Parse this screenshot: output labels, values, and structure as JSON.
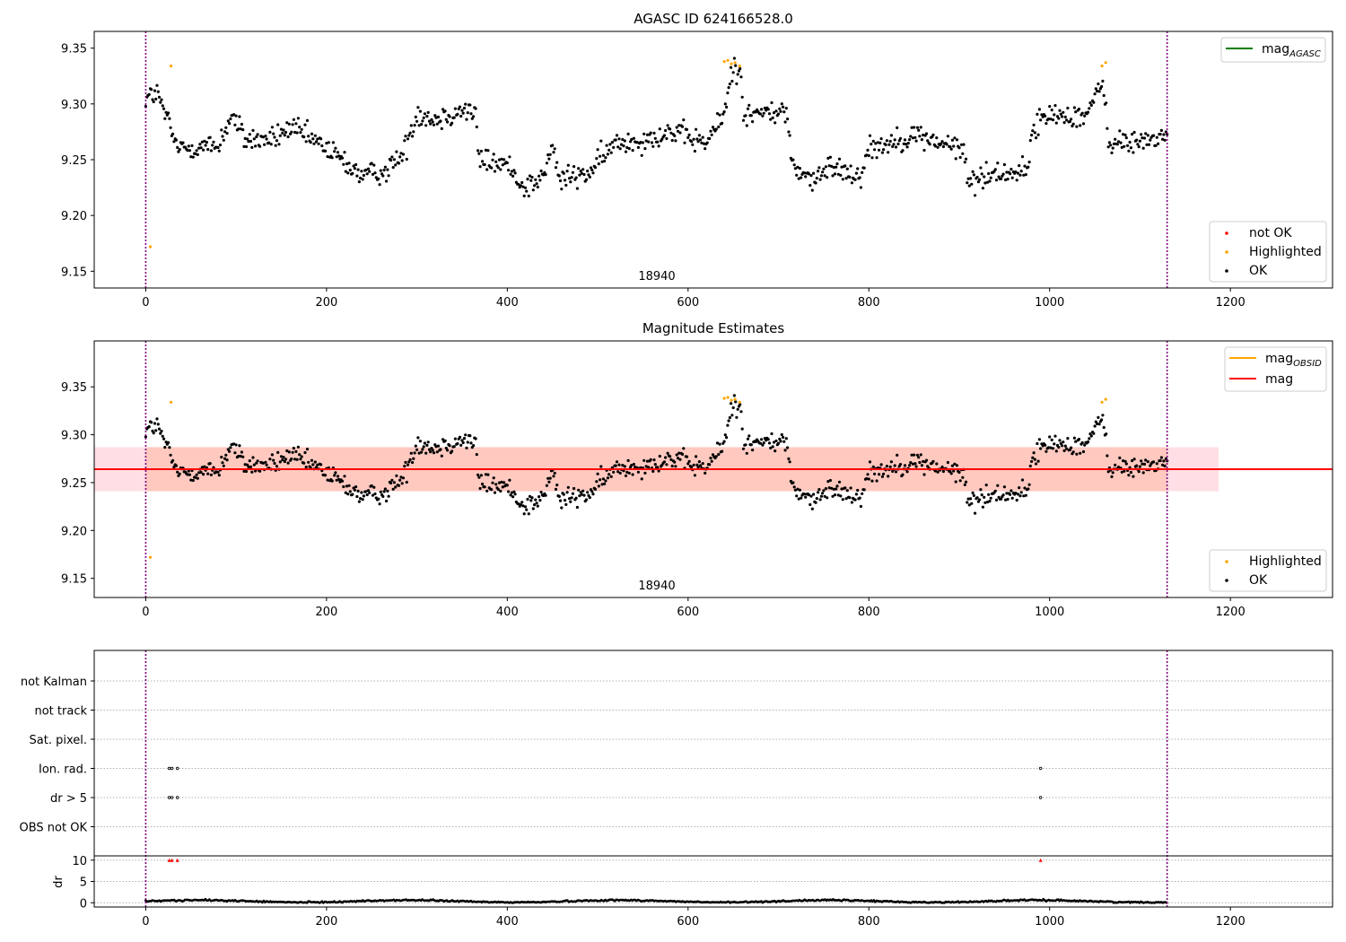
{
  "figure": {
    "title_top": "AGASC ID 624166528.0",
    "title_mid": "Magnitude Estimates"
  },
  "colors": {
    "ok": "#000000",
    "highlighted": "#ffa500",
    "not_ok": "#ff0000",
    "mag_agasc": "#008000",
    "mag_obsid": "#ffa500",
    "mag": "#ff0000",
    "band_fill": "#ffc0cb",
    "band_overlap": "#ffa07a",
    "obs_boundary": "#800080"
  },
  "chart_data": [
    {
      "type": "scatter",
      "title": "AGASC ID 624166528.0",
      "obsid_label": "18940",
      "xlim": [
        -57,
        1313
      ],
      "ylim": [
        9.135,
        9.365
      ],
      "xticks": [
        0,
        200,
        400,
        600,
        800,
        1000,
        1200
      ],
      "yticks": [
        9.15,
        9.2,
        9.25,
        9.3,
        9.35
      ],
      "obs_boundaries": [
        0,
        1130
      ],
      "legend_lines": [
        {
          "name": "mag",
          "sub": "AGASC",
          "color": "#008000"
        }
      ],
      "legend_points": [
        {
          "name": "not OK",
          "color": "#ff0000"
        },
        {
          "name": "Highlighted",
          "color": "#ffa500"
        },
        {
          "name": "OK",
          "color": "#000000"
        }
      ],
      "trend_knots": [
        [
          0,
          9.305
        ],
        [
          12,
          9.31
        ],
        [
          22,
          9.29
        ],
        [
          35,
          9.26
        ],
        [
          60,
          9.262
        ],
        [
          80,
          9.262
        ],
        [
          95,
          9.29
        ],
        [
          110,
          9.268
        ],
        [
          140,
          9.268
        ],
        [
          160,
          9.278
        ],
        [
          180,
          9.27
        ],
        [
          200,
          9.26
        ],
        [
          220,
          9.248
        ],
        [
          240,
          9.235
        ],
        [
          265,
          9.24
        ],
        [
          285,
          9.255
        ],
        [
          300,
          9.292
        ],
        [
          320,
          9.286
        ],
        [
          350,
          9.295
        ],
        [
          365,
          9.292
        ],
        [
          368,
          9.25
        ],
        [
          400,
          9.245
        ],
        [
          420,
          9.225
        ],
        [
          440,
          9.235
        ],
        [
          450,
          9.262
        ],
        [
          458,
          9.232
        ],
        [
          490,
          9.238
        ],
        [
          520,
          9.265
        ],
        [
          550,
          9.268
        ],
        [
          580,
          9.275
        ],
        [
          620,
          9.265
        ],
        [
          640,
          9.29
        ],
        [
          648,
          9.33
        ],
        [
          658,
          9.33
        ],
        [
          662,
          9.29
        ],
        [
          700,
          9.293
        ],
        [
          710,
          9.29
        ],
        [
          715,
          9.245
        ],
        [
          740,
          9.23
        ],
        [
          760,
          9.245
        ],
        [
          790,
          9.235
        ],
        [
          800,
          9.26
        ],
        [
          850,
          9.272
        ],
        [
          880,
          9.265
        ],
        [
          905,
          9.258
        ],
        [
          910,
          9.23
        ],
        [
          940,
          9.238
        ],
        [
          975,
          9.24
        ],
        [
          982,
          9.28
        ],
        [
          1000,
          9.29
        ],
        [
          1040,
          9.29
        ],
        [
          1058,
          9.315
        ],
        [
          1062,
          9.305
        ],
        [
          1065,
          9.265
        ],
        [
          1090,
          9.265
        ],
        [
          1130,
          9.272
        ]
      ],
      "highlighted_points": [
        [
          5,
          9.172
        ],
        [
          28,
          9.334
        ],
        [
          640,
          9.338
        ],
        [
          644,
          9.339
        ],
        [
          648,
          9.336
        ],
        [
          652,
          9.337
        ],
        [
          657,
          9.334
        ],
        [
          1058,
          9.334
        ],
        [
          1062,
          9.337
        ]
      ]
    },
    {
      "type": "scatter",
      "title": "Magnitude Estimates",
      "obsid_label": "18940",
      "xlim": [
        -57,
        1313
      ],
      "ylim": [
        9.13,
        9.398
      ],
      "xticks": [
        0,
        200,
        400,
        600,
        800,
        1000,
        1200
      ],
      "yticks": [
        9.15,
        9.2,
        9.25,
        9.3,
        9.35
      ],
      "obs_boundaries": [
        0,
        1130
      ],
      "mag": 9.264,
      "mag_band": [
        9.241,
        9.287
      ],
      "mag_band_xrange": [
        -57,
        1187
      ],
      "obsid_band_xrange": [
        0,
        1130
      ],
      "legend_lines": [
        {
          "name": "mag",
          "sub": "OBSID",
          "color": "#ffa500"
        },
        {
          "name": "mag",
          "sub": "",
          "color": "#ff0000"
        }
      ],
      "legend_points": [
        {
          "name": "Highlighted",
          "color": "#ffa500"
        },
        {
          "name": "OK",
          "color": "#000000"
        }
      ]
    },
    {
      "type": "scatter",
      "flag_rows": [
        "not Kalman",
        "not track",
        "Sat. pixel.",
        "Ion. rad.",
        "dr > 5",
        "OBS not OK"
      ],
      "flag_points": {
        "Ion. rad.": [
          26,
          29,
          35,
          990
        ],
        "dr > 5": [
          26,
          29,
          35,
          990
        ]
      },
      "ylabel": "dr",
      "dr_ylim": [
        -1,
        11
      ],
      "dr_yticks": [
        0,
        5,
        10
      ],
      "dr_spikes": [
        26,
        29,
        35,
        990
      ],
      "xlim": [
        -57,
        1313
      ],
      "xticks": [
        0,
        200,
        400,
        600,
        800,
        1000,
        1200
      ],
      "obs_boundaries": [
        0,
        1130
      ]
    }
  ]
}
